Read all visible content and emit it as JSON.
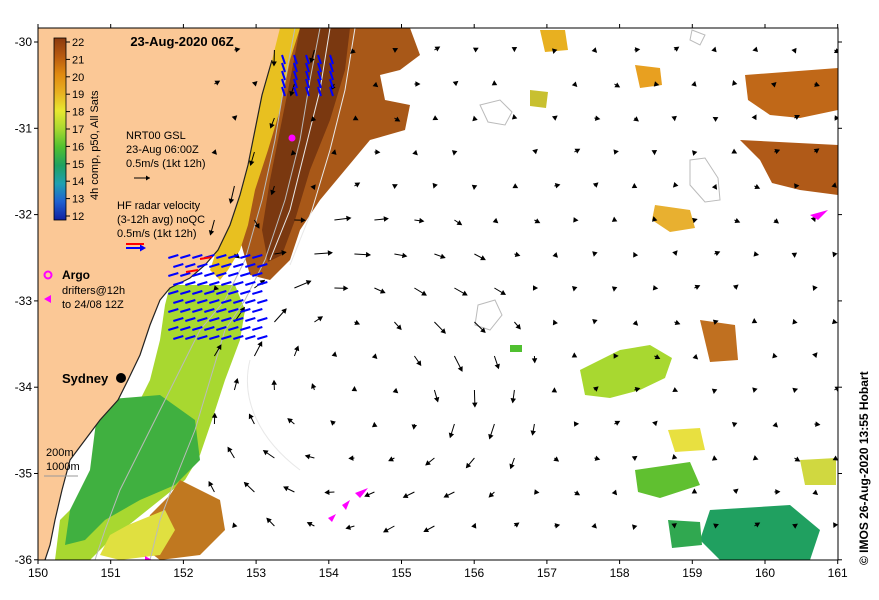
{
  "map": {
    "title": "23-Aug-2020 06Z",
    "credit": "© IMOS 26-Aug-2020 13:55 Hobart",
    "place_label": "Sydney",
    "x_ticks": [
      "150",
      "151",
      "152",
      "153",
      "154",
      "155",
      "156",
      "157",
      "158",
      "159",
      "160",
      "161"
    ],
    "y_ticks": [
      "-30",
      "-31",
      "-32",
      "-33",
      "-34",
      "-35",
      "-36"
    ],
    "lon_range": [
      150,
      161
    ],
    "lat_range": [
      -36,
      -29.8
    ],
    "colors": {
      "land": "#fbc896",
      "ocean": "#ffffff",
      "argo": "#ff00ff",
      "radar_blue": "#0000ff",
      "radar_red": "#ff0000"
    }
  },
  "colorbar": {
    "label": "4h comp, p50, All Sats",
    "ticks": [
      "22",
      "21",
      "20",
      "19",
      "18",
      "17",
      "16",
      "15",
      "14",
      "13",
      "12"
    ],
    "stops": [
      "#8b3a0f",
      "#b85a10",
      "#e08a10",
      "#e8b020",
      "#e8e830",
      "#a8d830",
      "#50c030",
      "#20a060",
      "#20a0b0",
      "#2060d0",
      "#1020a0"
    ]
  },
  "legend": {
    "nrt_lines": [
      "NRT00 GSL",
      "23-Aug 06:00Z",
      "0.5m/s (1kt 12h)"
    ],
    "hf_lines": [
      "HF radar velocity",
      "(3-12h avg) noQC",
      "0.5m/s (1kt 12h)"
    ],
    "argo_label": "Argo",
    "drifter_lines": [
      "drifters@12h",
      "to 24/08 12Z"
    ],
    "depth_lines": [
      "200m",
      "1000m"
    ]
  }
}
